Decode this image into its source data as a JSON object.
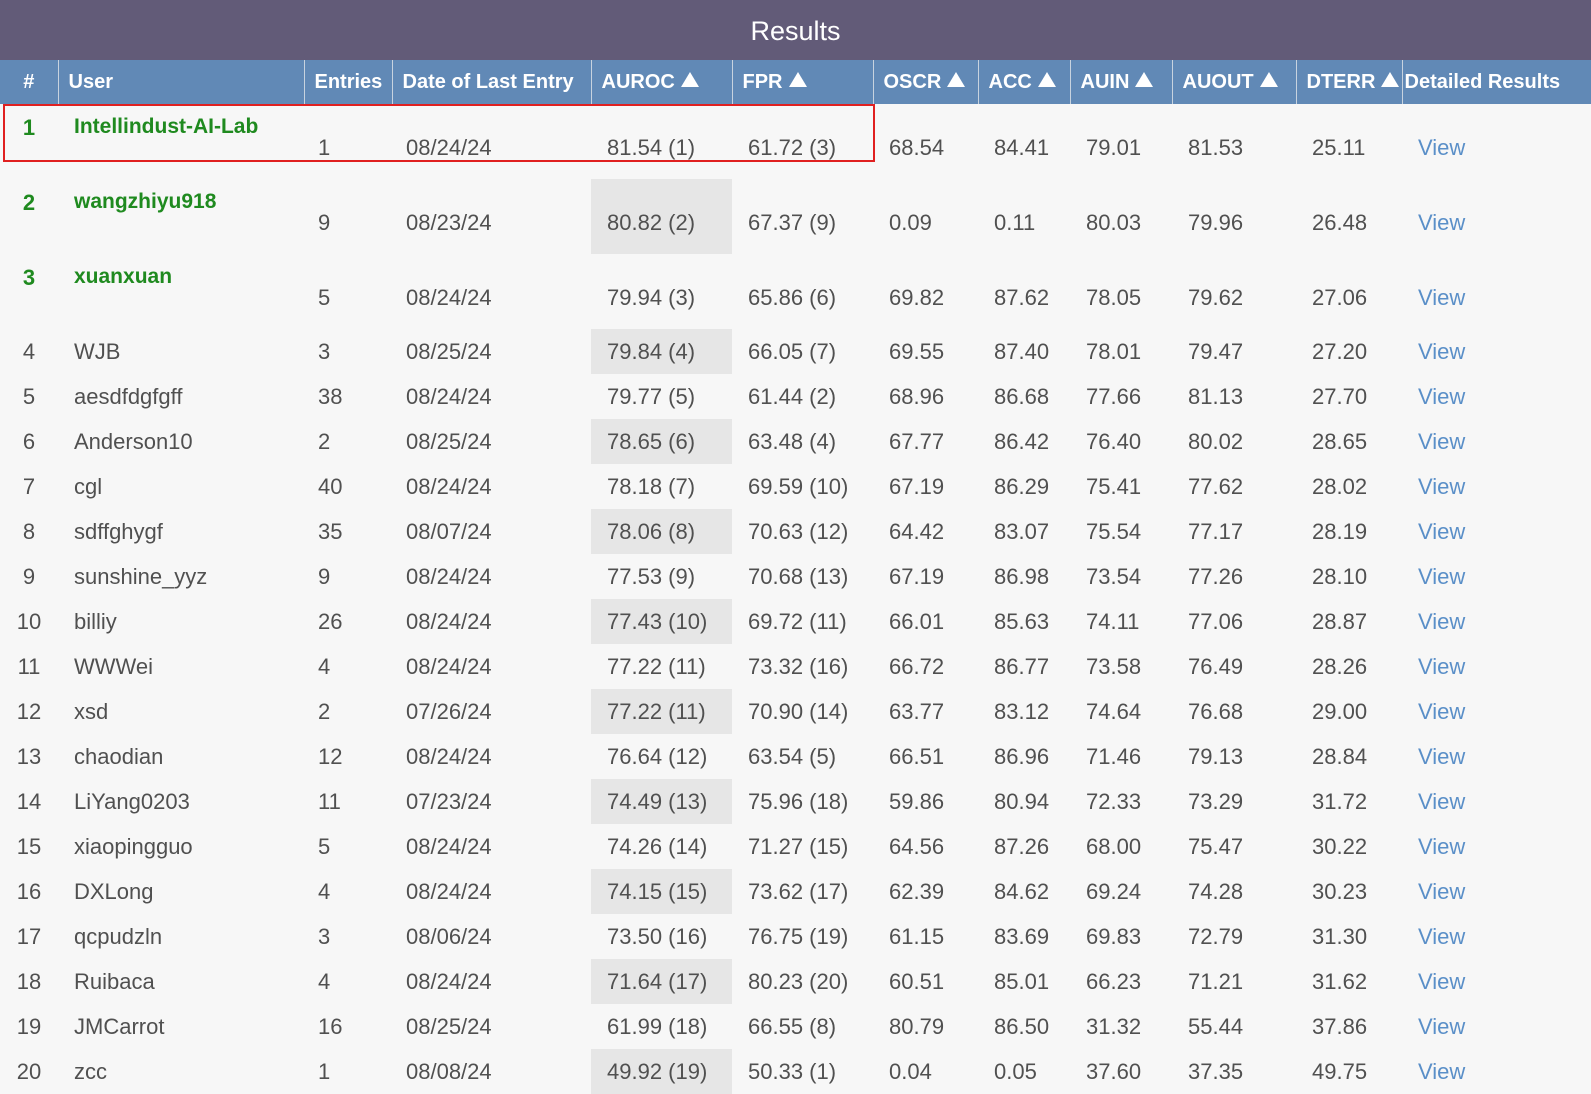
{
  "title": "Results",
  "columns": {
    "rank": "#",
    "user": "User",
    "entries": "Entries",
    "date": "Date of Last Entry",
    "auroc": "AUROC",
    "fpr": "FPR",
    "oscr": "OSCR",
    "acc": "ACC",
    "auin": "AUIN",
    "auout": "AUOUT",
    "dterr": "DTERR",
    "details": "Detailed Results"
  },
  "colors": {
    "title_bar": "#625b78",
    "header": "#6189b6",
    "top_user": "#1f8a1f",
    "link": "#5a8fc8",
    "highlight": "#e02020"
  },
  "rows": [
    {
      "rank": "1",
      "user": "Intellindust-AI-Lab",
      "entries": "1",
      "date": "08/24/24",
      "auroc": "81.54 (1)",
      "fpr": "61.72 (3)",
      "oscr": "68.54",
      "acc": "84.41",
      "auin": "79.01",
      "auout": "81.53",
      "dterr": "25.11",
      "view": "View"
    },
    {
      "rank": "2",
      "user": "wangzhiyu918",
      "entries": "9",
      "date": "08/23/24",
      "auroc": "80.82 (2)",
      "fpr": "67.37 (9)",
      "oscr": "0.09",
      "acc": "0.11",
      "auin": "80.03",
      "auout": "79.96",
      "dterr": "26.48",
      "view": "View"
    },
    {
      "rank": "3",
      "user": "xuanxuan",
      "entries": "5",
      "date": "08/24/24",
      "auroc": "79.94 (3)",
      "fpr": "65.86 (6)",
      "oscr": "69.82",
      "acc": "87.62",
      "auin": "78.05",
      "auout": "79.62",
      "dterr": "27.06",
      "view": "View"
    },
    {
      "rank": "4",
      "user": "WJB",
      "entries": "3",
      "date": "08/25/24",
      "auroc": "79.84 (4)",
      "fpr": "66.05 (7)",
      "oscr": "69.55",
      "acc": "87.40",
      "auin": "78.01",
      "auout": "79.47",
      "dterr": "27.20",
      "view": "View"
    },
    {
      "rank": "5",
      "user": "aesdfdgfgff",
      "entries": "38",
      "date": "08/24/24",
      "auroc": "79.77 (5)",
      "fpr": "61.44 (2)",
      "oscr": "68.96",
      "acc": "86.68",
      "auin": "77.66",
      "auout": "81.13",
      "dterr": "27.70",
      "view": "View"
    },
    {
      "rank": "6",
      "user": "Anderson10",
      "entries": "2",
      "date": "08/25/24",
      "auroc": "78.65 (6)",
      "fpr": "63.48 (4)",
      "oscr": "67.77",
      "acc": "86.42",
      "auin": "76.40",
      "auout": "80.02",
      "dterr": "28.65",
      "view": "View"
    },
    {
      "rank": "7",
      "user": "cgl",
      "entries": "40",
      "date": "08/24/24",
      "auroc": "78.18 (7)",
      "fpr": "69.59 (10)",
      "oscr": "67.19",
      "acc": "86.29",
      "auin": "75.41",
      "auout": "77.62",
      "dterr": "28.02",
      "view": "View"
    },
    {
      "rank": "8",
      "user": "sdffghygf",
      "entries": "35",
      "date": "08/07/24",
      "auroc": "78.06 (8)",
      "fpr": "70.63 (12)",
      "oscr": "64.42",
      "acc": "83.07",
      "auin": "75.54",
      "auout": "77.17",
      "dterr": "28.19",
      "view": "View"
    },
    {
      "rank": "9",
      "user": "sunshine_yyz",
      "entries": "9",
      "date": "08/24/24",
      "auroc": "77.53 (9)",
      "fpr": "70.68 (13)",
      "oscr": "67.19",
      "acc": "86.98",
      "auin": "73.54",
      "auout": "77.26",
      "dterr": "28.10",
      "view": "View"
    },
    {
      "rank": "10",
      "user": "billiy",
      "entries": "26",
      "date": "08/24/24",
      "auroc": "77.43 (10)",
      "fpr": "69.72 (11)",
      "oscr": "66.01",
      "acc": "85.63",
      "auin": "74.11",
      "auout": "77.06",
      "dterr": "28.87",
      "view": "View"
    },
    {
      "rank": "11",
      "user": "WWWei",
      "entries": "4",
      "date": "08/24/24",
      "auroc": "77.22 (11)",
      "fpr": "73.32 (16)",
      "oscr": "66.72",
      "acc": "86.77",
      "auin": "73.58",
      "auout": "76.49",
      "dterr": "28.26",
      "view": "View"
    },
    {
      "rank": "12",
      "user": "xsd",
      "entries": "2",
      "date": "07/26/24",
      "auroc": "77.22 (11)",
      "fpr": "70.90 (14)",
      "oscr": "63.77",
      "acc": "83.12",
      "auin": "74.64",
      "auout": "76.68",
      "dterr": "29.00",
      "view": "View"
    },
    {
      "rank": "13",
      "user": "chaodian",
      "entries": "12",
      "date": "08/24/24",
      "auroc": "76.64 (12)",
      "fpr": "63.54 (5)",
      "oscr": "66.51",
      "acc": "86.96",
      "auin": "71.46",
      "auout": "79.13",
      "dterr": "28.84",
      "view": "View"
    },
    {
      "rank": "14",
      "user": "LiYang0203",
      "entries": "11",
      "date": "07/23/24",
      "auroc": "74.49 (13)",
      "fpr": "75.96 (18)",
      "oscr": "59.86",
      "acc": "80.94",
      "auin": "72.33",
      "auout": "73.29",
      "dterr": "31.72",
      "view": "View"
    },
    {
      "rank": "15",
      "user": "xiaopingguo",
      "entries": "5",
      "date": "08/24/24",
      "auroc": "74.26 (14)",
      "fpr": "71.27 (15)",
      "oscr": "64.56",
      "acc": "87.26",
      "auin": "68.00",
      "auout": "75.47",
      "dterr": "30.22",
      "view": "View"
    },
    {
      "rank": "16",
      "user": "DXLong",
      "entries": "4",
      "date": "08/24/24",
      "auroc": "74.15 (15)",
      "fpr": "73.62 (17)",
      "oscr": "62.39",
      "acc": "84.62",
      "auin": "69.24",
      "auout": "74.28",
      "dterr": "30.23",
      "view": "View"
    },
    {
      "rank": "17",
      "user": "qcpudzln",
      "entries": "3",
      "date": "08/06/24",
      "auroc": "73.50 (16)",
      "fpr": "76.75 (19)",
      "oscr": "61.15",
      "acc": "83.69",
      "auin": "69.83",
      "auout": "72.79",
      "dterr": "31.30",
      "view": "View"
    },
    {
      "rank": "18",
      "user": "Ruibaca",
      "entries": "4",
      "date": "08/24/24",
      "auroc": "71.64 (17)",
      "fpr": "80.23 (20)",
      "oscr": "60.51",
      "acc": "85.01",
      "auin": "66.23",
      "auout": "71.21",
      "dterr": "31.62",
      "view": "View"
    },
    {
      "rank": "19",
      "user": "JMCarrot",
      "entries": "16",
      "date": "08/25/24",
      "auroc": "61.99 (18)",
      "fpr": "66.55 (8)",
      "oscr": "80.79",
      "acc": "86.50",
      "auin": "31.32",
      "auout": "55.44",
      "dterr": "37.86",
      "view": "View"
    },
    {
      "rank": "20",
      "user": "zcc",
      "entries": "1",
      "date": "08/08/24",
      "auroc": "49.92 (19)",
      "fpr": "50.33 (1)",
      "oscr": "0.04",
      "acc": "0.05",
      "auin": "37.60",
      "auout": "37.35",
      "dterr": "49.75",
      "view": "View"
    }
  ]
}
